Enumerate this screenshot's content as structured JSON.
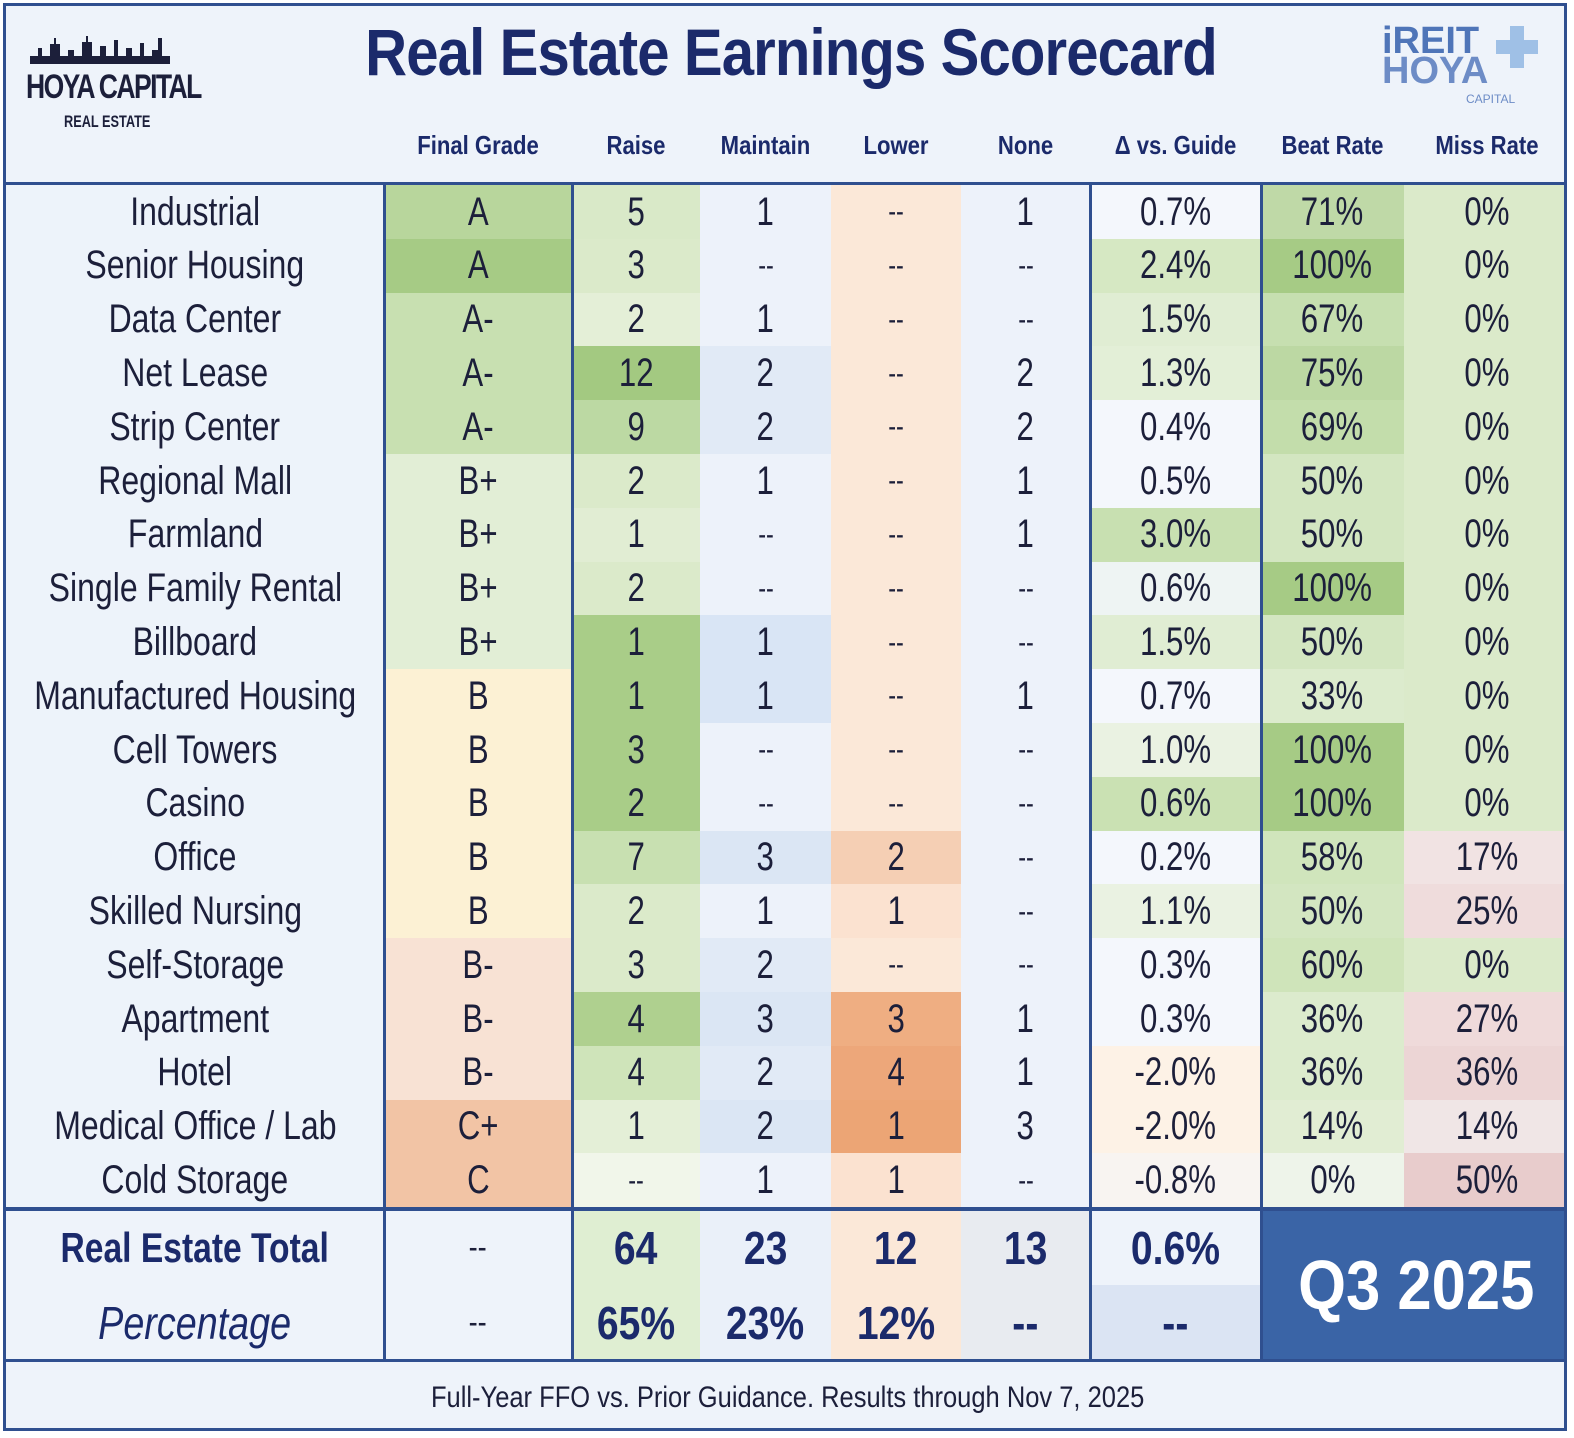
{
  "header": {
    "title": "Real Estate Earnings Scorecard",
    "logo_left_main": "HOYA CAPITAL",
    "logo_left_sub": "REAL ESTATE",
    "logo_right_line1": "iREIT",
    "logo_right_line2": "HOYA",
    "logo_right_line3": "CAPITAL"
  },
  "colors": {
    "frame": "#2f4f8f",
    "title": "#1b2a6b",
    "q3_bg": "#3a64a6"
  },
  "chart_data": {
    "type": "table",
    "title": "Real Estate Earnings Scorecard",
    "columns": [
      "",
      "Final Grade",
      "Raise",
      "Maintain",
      "Lower",
      "None",
      "Δ vs. Guide",
      "Beat Rate",
      "Miss Rate"
    ],
    "rows": [
      [
        "Industrial",
        "A",
        "5",
        "1",
        "--",
        "1",
        "0.7%",
        "71%",
        "0%"
      ],
      [
        "Senior Housing",
        "A",
        "3",
        "--",
        "--",
        "--",
        "2.4%",
        "100%",
        "0%"
      ],
      [
        "Data Center",
        "A-",
        "2",
        "1",
        "--",
        "--",
        "1.5%",
        "67%",
        "0%"
      ],
      [
        "Net Lease",
        "A-",
        "12",
        "2",
        "--",
        "2",
        "1.3%",
        "75%",
        "0%"
      ],
      [
        "Strip Center",
        "A-",
        "9",
        "2",
        "--",
        "2",
        "0.4%",
        "69%",
        "0%"
      ],
      [
        "Regional Mall",
        "B+",
        "2",
        "1",
        "--",
        "1",
        "0.5%",
        "50%",
        "0%"
      ],
      [
        "Farmland",
        "B+",
        "1",
        "--",
        "--",
        "1",
        "3.0%",
        "50%",
        "0%"
      ],
      [
        "Single Family Rental",
        "B+",
        "2",
        "--",
        "--",
        "--",
        "0.6%",
        "100%",
        "0%"
      ],
      [
        "Billboard",
        "B+",
        "1",
        "1",
        "--",
        "--",
        "1.5%",
        "50%",
        "0%"
      ],
      [
        "Manufactured Housing",
        "B",
        "1",
        "1",
        "--",
        "1",
        "0.7%",
        "33%",
        "0%"
      ],
      [
        "Cell Towers",
        "B",
        "3",
        "--",
        "--",
        "--",
        "1.0%",
        "100%",
        "0%"
      ],
      [
        "Casino",
        "B",
        "2",
        "--",
        "--",
        "--",
        "0.6%",
        "100%",
        "0%"
      ],
      [
        "Office",
        "B",
        "7",
        "3",
        "2",
        "--",
        "0.2%",
        "58%",
        "17%"
      ],
      [
        "Skilled Nursing",
        "B",
        "2",
        "1",
        "1",
        "--",
        "1.1%",
        "50%",
        "25%"
      ],
      [
        "Self-Storage",
        "B-",
        "3",
        "2",
        "--",
        "--",
        "0.3%",
        "60%",
        "0%"
      ],
      [
        "Apartment",
        "B-",
        "4",
        "3",
        "3",
        "1",
        "0.3%",
        "36%",
        "27%"
      ],
      [
        "Hotel",
        "B-",
        "4",
        "2",
        "4",
        "1",
        "-2.0%",
        "36%",
        "36%"
      ],
      [
        "Medical Office / Lab",
        "C+",
        "1",
        "2",
        "1",
        "3",
        "-2.0%",
        "14%",
        "14%"
      ],
      [
        "Cold Storage",
        "C",
        "--",
        "1",
        "1",
        "--",
        "-0.8%",
        "0%",
        "50%"
      ]
    ],
    "cell_colors": [
      [
        "#edf3fa",
        "#b8d69c",
        "#d9e9c8",
        "#edf2fa",
        "#fbe8d8",
        "#edf2fa",
        "#f4f7fc",
        "#bfd9a7",
        "#dbeaca"
      ],
      [
        "#edf3fa",
        "#a6cb85",
        "#dbeaca",
        "#edf2fa",
        "#fbe8d8",
        "#edf2fa",
        "#d6e8c3",
        "#a6cb85",
        "#dbeaca"
      ],
      [
        "#edf3fa",
        "#c8e0b1",
        "#e4efd7",
        "#edf2fa",
        "#fbe8d8",
        "#edf2fa",
        "#e0edd3",
        "#c6dfb0",
        "#dbeaca"
      ],
      [
        "#edf3fa",
        "#c8e0b1",
        "#a3c981",
        "#e1eaf6",
        "#fbe8d8",
        "#edf2fa",
        "#e3efd7",
        "#bcd8a3",
        "#dbeaca"
      ],
      [
        "#edf3fa",
        "#c8e0b1",
        "#bcd9a3",
        "#e1eaf6",
        "#fbe8d8",
        "#edf2fa",
        "#f4f7fc",
        "#c3ddab",
        "#dbeaca"
      ],
      [
        "#edf3fa",
        "#e2eed6",
        "#dbeaca",
        "#edf2fa",
        "#fbe8d8",
        "#edf2fa",
        "#f4f7fc",
        "#d3e6c1",
        "#dbeaca"
      ],
      [
        "#edf3fa",
        "#e2eed6",
        "#e1edd3",
        "#edf2fa",
        "#fbe8d8",
        "#edf2fa",
        "#c8e0b1",
        "#d3e6c1",
        "#dbeaca"
      ],
      [
        "#edf3fa",
        "#e2eed6",
        "#dbeaca",
        "#edf2fa",
        "#fbe8d8",
        "#edf2fa",
        "#eef4f3",
        "#a6cb85",
        "#dbeaca"
      ],
      [
        "#edf3fa",
        "#e2eed6",
        "#a9cd88",
        "#d9e5f5",
        "#fbe8d8",
        "#edf2fa",
        "#e0edd3",
        "#d3e6c1",
        "#dbeaca"
      ],
      [
        "#edf3fa",
        "#fcf1d4",
        "#a9cd88",
        "#d9e5f5",
        "#fbe8d8",
        "#edf2fa",
        "#f4f7fc",
        "#dcebcd",
        "#dbeaca"
      ],
      [
        "#edf3fa",
        "#fcf1d4",
        "#a9cd88",
        "#edf2fa",
        "#fbe8d8",
        "#edf2fa",
        "#eaf2e2",
        "#a6cb85",
        "#dbeaca"
      ],
      [
        "#edf3fa",
        "#fcf1d4",
        "#a9cd88",
        "#edf2fa",
        "#fbe8d8",
        "#edf2fa",
        "#cae1b3",
        "#a6cb85",
        "#dbeaca"
      ],
      [
        "#edf3fa",
        "#fcf1d4",
        "#c8e0b1",
        "#dbe6f4",
        "#f5cfb4",
        "#edf2fa",
        "#f4f7fc",
        "#d0e5bc",
        "#f1e3e3"
      ],
      [
        "#edf3fa",
        "#fcf1d4",
        "#dbeaca",
        "#edf2fa",
        "#fbe2d0",
        "#edf2fa",
        "#eaf2e2",
        "#d3e6c1",
        "#efdcdc"
      ],
      [
        "#edf3fa",
        "#f8e2d4",
        "#dbeaca",
        "#e1eaf6",
        "#fbe8d8",
        "#edf2fa",
        "#f4f7fc",
        "#cfe4ba",
        "#dbeaca"
      ],
      [
        "#edf3fa",
        "#f8e2d4",
        "#afd08f",
        "#dbe6f4",
        "#efae82",
        "#edf2fa",
        "#f4f7fc",
        "#dcebcd",
        "#efdada"
      ],
      [
        "#edf3fa",
        "#f8e2d4",
        "#cfe4ba",
        "#e1eaf6",
        "#eda77a",
        "#edf2fa",
        "#fdf2e6",
        "#dcebcd",
        "#ecd5d5"
      ],
      [
        "#edf3fa",
        "#f2c4a5",
        "#e4efd7",
        "#dbe6f4",
        "#eca575",
        "#edf2fa",
        "#fdf2e6",
        "#e1edd3",
        "#f0e6e6"
      ],
      [
        "#edf3fa",
        "#f2c4a5",
        "#f1f6ea",
        "#edf2fa",
        "#fbe2d0",
        "#edf2fa",
        "#f8f4f1",
        "#eef4ea",
        "#e8cccc"
      ]
    ],
    "totals": {
      "label": "Real Estate Total",
      "final_grade": "--",
      "raise": "64",
      "maintain": "23",
      "lower": "12",
      "none": "13",
      "delta_vs_guide": "0.6%"
    },
    "percentage": {
      "label": "Percentage",
      "final_grade": "--",
      "raise": "65%",
      "maintain": "23%",
      "lower": "12%",
      "none": "--",
      "delta_vs_guide": "--"
    }
  },
  "badge": "Q3 2025",
  "footer": "Full-Year FFO vs. Prior Guidance. Results through Nov 7, 2025"
}
